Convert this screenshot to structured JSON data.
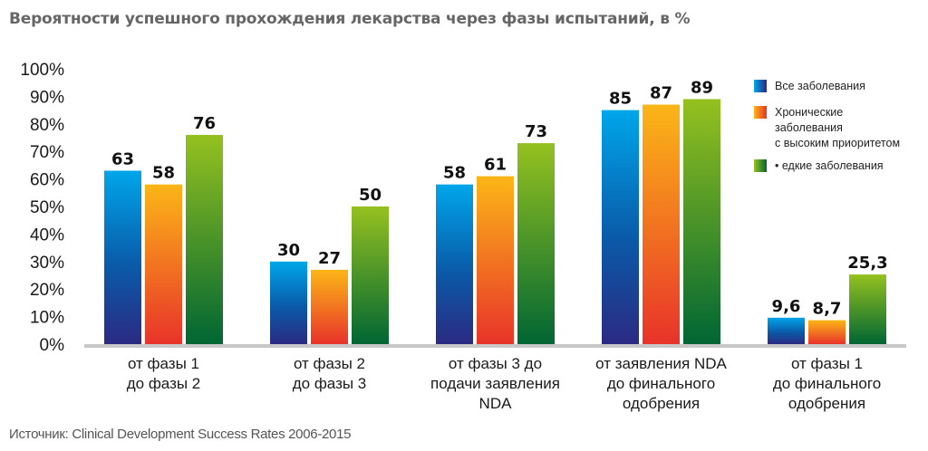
{
  "title": "Вероятности успешного прохождения лекарства через фазы испытаний, в %",
  "source": "Источник: Clinical Development Success Rates 2006-2015",
  "colors": {
    "blue_top": "#00a6ea",
    "blue_bottom": "#2b2a82",
    "orange_top": "#fbb617",
    "orange_bottom": "#e8332a",
    "green_top": "#95c11f",
    "green_bottom": "#006633",
    "axis": "#c8c8c8"
  },
  "chart_data": {
    "type": "bar",
    "title": "Вероятности успешного прохождения лекарства через фазы испытаний, в %",
    "xlabel": "",
    "ylabel": "",
    "ylim": [
      0,
      100
    ],
    "yticks": [
      "0%",
      "10%",
      "20%",
      "30%",
      "40%",
      "50%",
      "60%",
      "70%",
      "80%",
      "90%",
      "100%"
    ],
    "grid": false,
    "legend_position": "top-right",
    "categories": [
      [
        "от фазы 1",
        "до фазы 2"
      ],
      [
        "от фазы 2",
        "до фазы 3"
      ],
      [
        "от фазы 3 до",
        "подачи заявления",
        "NDA"
      ],
      [
        "от заявления NDA",
        "до финального",
        "одобрения"
      ],
      [
        "от фазы 1",
        "до финального",
        "одобрения"
      ]
    ],
    "series": [
      {
        "name": "Все заболевания",
        "legend_lines": [
          "Все заболевания"
        ],
        "color": "blue",
        "values": [
          63,
          30,
          58,
          85,
          9.6
        ],
        "labels": [
          "63",
          "30",
          "58",
          "85",
          "9,6"
        ]
      },
      {
        "name": "Хронические заболевания с высоким приоритетом",
        "legend_lines": [
          "Хронические",
          "заболевания",
          "с высоким приоритетом"
        ],
        "color": "orange",
        "values": [
          58,
          27,
          61,
          87,
          8.7
        ],
        "labels": [
          "58",
          "27",
          "61",
          "87",
          "8,7"
        ]
      },
      {
        "name": "• едкие заболевания",
        "legend_lines": [
          "• едкие заболевания"
        ],
        "color": "green",
        "values": [
          76,
          50,
          73,
          89,
          25.3
        ],
        "labels": [
          "76",
          "50",
          "73",
          "89",
          "25,3"
        ]
      }
    ]
  }
}
